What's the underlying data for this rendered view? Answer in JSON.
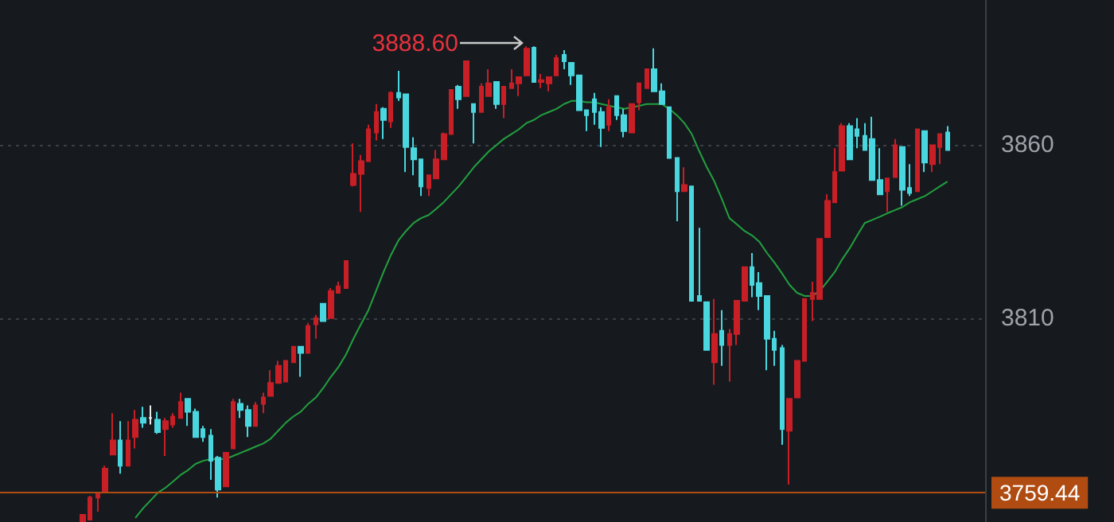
{
  "chart_data": {
    "type": "candlestick",
    "categories": [
      null,
      null,
      null,
      null,
      null,
      null,
      null,
      null,
      null,
      null,
      null,
      null,
      null,
      null,
      null,
      null,
      null,
      null,
      null,
      null,
      null,
      null,
      null,
      null,
      null,
      null,
      null,
      null,
      null,
      null,
      null,
      null,
      null,
      null,
      null,
      null,
      null,
      null,
      null,
      null,
      null,
      null,
      null,
      null,
      null,
      null,
      null,
      null,
      null,
      null,
      null,
      null,
      null,
      null,
      null,
      null,
      null,
      null,
      null,
      null,
      null,
      null,
      null,
      null,
      null,
      null,
      null,
      null,
      null,
      null,
      null,
      null,
      null,
      null,
      null,
      null,
      null,
      null,
      null,
      null,
      null,
      null,
      null,
      null,
      null,
      null,
      null,
      null,
      null,
      null,
      null,
      null,
      null,
      null,
      null,
      null,
      null,
      null,
      null,
      null,
      null,
      null,
      null,
      null,
      null,
      null,
      null,
      null,
      null,
      null,
      null,
      null,
      null,
      null,
      null,
      null
    ],
    "ohlc": [
      [
        3751.2,
        3753.1,
        3751.2,
        3753.1
      ],
      [
        3751.7,
        3758.6,
        3751.7,
        3758.1
      ],
      [
        3758.1,
        3759.5,
        3754.0,
        3759.5
      ],
      [
        3760.0,
        3767.3,
        3760.0,
        3766.4
      ],
      [
        3770.5,
        3782.5,
        3770.5,
        3774.6
      ],
      [
        3774.6,
        3780.2,
        3765.0,
        3767.3
      ],
      [
        3767.3,
        3780.2,
        3767.3,
        3774.6
      ],
      [
        3775.6,
        3783.4,
        3772.3,
        3780.6
      ],
      [
        3781.1,
        3784.3,
        3778.3,
        3779.7
      ],
      [
        3781.1,
        3784.7,
        3779.2,
        3781.1
      ],
      [
        3780.6,
        3782.9,
        3776.5,
        3777.0
      ],
      [
        3777.9,
        3781.1,
        3770.1,
        3780.2
      ],
      [
        3779.2,
        3782.5,
        3778.3,
        3781.5
      ],
      [
        3781.1,
        3788.4,
        3781.1,
        3785.7
      ],
      [
        3786.6,
        3786.6,
        3778.8,
        3782.9
      ],
      [
        3782.9,
        3783.8,
        3775.6,
        3775.6
      ],
      [
        3777.9,
        3778.8,
        3774.2,
        3775.6
      ],
      [
        3776.0,
        3777.9,
        3763.2,
        3768.7
      ],
      [
        3769.6,
        3770.1,
        3758.1,
        3760.4
      ],
      [
        3761.3,
        3771.0,
        3761.3,
        3771.0
      ],
      [
        3772.3,
        3786.6,
        3772.3,
        3785.7
      ],
      [
        3785.2,
        3786.6,
        3781.1,
        3783.4
      ],
      [
        3783.4,
        3784.7,
        3775.6,
        3778.8
      ],
      [
        3778.8,
        3785.7,
        3778.8,
        3784.7
      ],
      [
        3785.2,
        3788.4,
        3782.5,
        3787.0
      ],
      [
        3787.5,
        3794.9,
        3787.5,
        3791.2
      ],
      [
        3791.2,
        3797.6,
        3791.2,
        3796.2
      ],
      [
        3791.6,
        3797.6,
        3791.6,
        3797.6
      ],
      [
        3797.2,
        3801.7,
        3797.2,
        3801.7
      ],
      [
        3801.7,
        3801.7,
        3793.0,
        3799.9
      ],
      [
        3799.9,
        3808.6,
        3799.9,
        3807.7
      ],
      [
        3808.2,
        3810.9,
        3804.0,
        3810.0
      ],
      [
        3814.1,
        3814.1,
        3809.1,
        3809.1
      ],
      [
        3810.0,
        3818.7,
        3810.0,
        3817.8
      ],
      [
        3817.3,
        3820.5,
        3817.3,
        3819.2
      ],
      [
        3818.7,
        3826.5,
        3818.7,
        3826.5
      ],
      [
        3848.5,
        3860.5,
        3848.1,
        3851.7
      ],
      [
        3851.7,
        3857.2,
        3840.7,
        3855.4
      ],
      [
        3855.4,
        3865.9,
        3855.4,
        3864.6
      ],
      [
        3863.7,
        3871.9,
        3861.4,
        3869.6
      ],
      [
        3870.5,
        3871.0,
        3861.8,
        3867.3
      ],
      [
        3866.9,
        3875.6,
        3865.0,
        3875.1
      ],
      [
        3875.1,
        3881.5,
        3872.8,
        3873.8
      ],
      [
        3874.7,
        3874.7,
        3852.2,
        3859.5
      ],
      [
        3859.1,
        3862.3,
        3851.3,
        3855.9
      ],
      [
        3855.9,
        3855.9,
        3845.3,
        3848.1
      ],
      [
        3847.6,
        3851.3,
        3845.3,
        3851.3
      ],
      [
        3850.4,
        3858.6,
        3850.4,
        3855.9
      ],
      [
        3855.9,
        3863.7,
        3855.9,
        3863.2
      ],
      [
        3863.2,
        3876.0,
        3863.2,
        3876.0
      ],
      [
        3876.9,
        3877.4,
        3870.5,
        3873.3
      ],
      [
        3874.2,
        3884.3,
        3874.2,
        3884.3
      ],
      [
        3871.9,
        3871.9,
        3860.5,
        3869.6
      ],
      [
        3869.6,
        3877.9,
        3869.6,
        3876.9
      ],
      [
        3874.2,
        3882.0,
        3874.2,
        3877.9
      ],
      [
        3878.3,
        3878.3,
        3870.5,
        3871.9
      ],
      [
        3871.9,
        3876.9,
        3867.8,
        3876.9
      ],
      [
        3876.5,
        3882.0,
        3876.5,
        3877.9
      ],
      [
        3877.9,
        3879.7,
        3874.2,
        3879.7
      ],
      [
        3880.2,
        3888.6,
        3880.2,
        3887.9
      ],
      [
        3888.2,
        3888.6,
        3878.3,
        3878.3
      ],
      [
        3878.3,
        3880.6,
        3876.5,
        3878.8
      ],
      [
        3877.9,
        3879.7,
        3875.6,
        3879.7
      ],
      [
        3880.2,
        3886.1,
        3880.2,
        3885.2
      ],
      [
        3886.1,
        3887.5,
        3882.0,
        3884.3
      ],
      [
        3883.8,
        3883.8,
        3877.4,
        3880.2
      ],
      [
        3880.2,
        3880.2,
        3870.1,
        3870.1
      ],
      [
        3870.1,
        3870.1,
        3864.1,
        3868.7
      ],
      [
        3873.3,
        3875.1,
        3865.9,
        3869.6
      ],
      [
        3869.6,
        3871.0,
        3859.5,
        3865.0
      ],
      [
        3865.9,
        3873.3,
        3864.1,
        3871.0
      ],
      [
        3874.2,
        3874.2,
        3867.3,
        3868.7
      ],
      [
        3868.7,
        3870.5,
        3862.3,
        3864.1
      ],
      [
        3863.7,
        3871.9,
        3863.7,
        3871.9
      ],
      [
        3872.4,
        3877.9,
        3870.1,
        3877.9
      ],
      [
        3876.5,
        3882.0,
        3876.5,
        3882.0
      ],
      [
        3882.0,
        3888.0,
        3875.6,
        3875.6
      ],
      [
        3875.6,
        3877.9,
        3871.9,
        3871.9
      ],
      [
        3871.0,
        3871.0,
        3856.3,
        3856.3
      ],
      [
        3856.3,
        3856.3,
        3838.0,
        3846.7
      ],
      [
        3846.7,
        3853.6,
        3846.7,
        3848.5
      ],
      [
        3848.1,
        3848.1,
        3815.0,
        3815.0
      ],
      [
        3816.4,
        3836.1,
        3815.0,
        3815.0
      ],
      [
        3814.6,
        3814.6,
        3800.8,
        3800.8
      ],
      [
        3797.2,
        3815.5,
        3790.7,
        3805.4
      ],
      [
        3806.3,
        3812.3,
        3796.2,
        3802.2
      ],
      [
        3802.2,
        3806.8,
        3791.6,
        3805.4
      ],
      [
        3805.4,
        3815.0,
        3802.2,
        3815.0
      ],
      [
        3815.0,
        3824.7,
        3815.0,
        3824.7
      ],
      [
        3824.7,
        3828.8,
        3816.0,
        3819.6
      ],
      [
        3820.1,
        3823.3,
        3812.3,
        3816.4
      ],
      [
        3816.4,
        3816.4,
        3794.9,
        3804.0
      ],
      [
        3804.0,
        3806.3,
        3796.2,
        3800.8
      ],
      [
        3801.3,
        3802.2,
        3773.3,
        3777.9
      ],
      [
        3777.4,
        3786.6,
        3761.8,
        3786.6
      ],
      [
        3787.0,
        3797.6,
        3787.0,
        3797.6
      ],
      [
        3797.6,
        3815.5,
        3797.6,
        3815.5
      ],
      [
        3815.5,
        3820.5,
        3809.1,
        3817.3
      ],
      [
        3815.5,
        3832.9,
        3815.5,
        3832.9
      ],
      [
        3833.4,
        3845.8,
        3833.4,
        3843.9
      ],
      [
        3843.5,
        3859.1,
        3843.5,
        3852.2
      ],
      [
        3852.6,
        3866.4,
        3852.6,
        3865.5
      ],
      [
        3865.5,
        3866.4,
        3855.9,
        3855.9
      ],
      [
        3864.6,
        3867.8,
        3859.1,
        3862.7
      ],
      [
        3862.7,
        3866.4,
        3858.6,
        3858.6
      ],
      [
        3861.8,
        3868.2,
        3849.9,
        3849.9
      ],
      [
        3849.9,
        3859.1,
        3845.8,
        3845.8
      ],
      [
        3846.7,
        3850.4,
        3840.7,
        3850.4
      ],
      [
        3850.8,
        3861.8,
        3850.8,
        3860.0
      ],
      [
        3859.5,
        3859.5,
        3842.5,
        3847.1
      ],
      [
        3847.6,
        3854.5,
        3845.3,
        3846.2
      ],
      [
        3846.7,
        3864.6,
        3846.7,
        3864.6
      ],
      [
        3864.1,
        3864.1,
        3852.2,
        3855.0
      ],
      [
        3854.5,
        3860.0,
        3852.2,
        3860.0
      ],
      [
        3859.5,
        3863.2,
        3854.5,
        3863.2
      ],
      [
        3863.7,
        3865.5,
        3858.6,
        3858.6
      ]
    ],
    "colors": [
      "#c81e26",
      "#c81e26",
      "#c81e26",
      "#c81e26",
      "#c81e26",
      "#4ad6de",
      "#c81e26",
      "#c81e26",
      "#4ad6de",
      "#e8e8e8",
      "#4ad6de",
      "#c81e26",
      "#c81e26",
      "#c81e26",
      "#4ad6de",
      "#4ad6de",
      "#4ad6de",
      "#4ad6de",
      "#4ad6de",
      "#c81e26",
      "#c81e26",
      "#4ad6de",
      "#4ad6de",
      "#c81e26",
      "#c81e26",
      "#c81e26",
      "#c81e26",
      "#c81e26",
      "#c81e26",
      "#4ad6de",
      "#c81e26",
      "#c81e26",
      "#4ad6de",
      "#c81e26",
      "#c81e26",
      "#c81e26",
      "#c81e26",
      "#c81e26",
      "#c81e26",
      "#c81e26",
      "#4ad6de",
      "#c81e26",
      "#4ad6de",
      "#4ad6de",
      "#4ad6de",
      "#4ad6de",
      "#c81e26",
      "#c81e26",
      "#c81e26",
      "#c81e26",
      "#4ad6de",
      "#c81e26",
      "#4ad6de",
      "#c81e26",
      "#c81e26",
      "#4ad6de",
      "#c81e26",
      "#c81e26",
      "#c81e26",
      "#c81e26",
      "#4ad6de",
      "#c81e26",
      "#c81e26",
      "#c81e26",
      "#4ad6de",
      "#4ad6de",
      "#4ad6de",
      "#4ad6de",
      "#4ad6de",
      "#4ad6de",
      "#c81e26",
      "#4ad6de",
      "#4ad6de",
      "#c81e26",
      "#c81e26",
      "#c81e26",
      "#4ad6de",
      "#4ad6de",
      "#4ad6de",
      "#4ad6de",
      "#c81e26",
      "#4ad6de",
      "#4ad6de",
      "#4ad6de",
      "#c81e26",
      "#4ad6de",
      "#c81e26",
      "#c81e26",
      "#c81e26",
      "#4ad6de",
      "#4ad6de",
      "#4ad6de",
      "#4ad6de",
      "#4ad6de",
      "#c81e26",
      "#c81e26",
      "#c81e26",
      "#c81e26",
      "#c81e26",
      "#c81e26",
      "#c81e26",
      "#c81e26",
      "#4ad6de",
      "#4ad6de",
      "#4ad6de",
      "#4ad6de",
      "#4ad6de",
      "#c81e26",
      "#c81e26",
      "#4ad6de",
      "#4ad6de",
      "#c81e26",
      "#4ad6de",
      "#c81e26",
      "#c81e26",
      "#4ad6de"
    ],
    "series": [
      {
        "type": "line",
        "color": "#22a03e",
        "values": [
          null,
          null,
          null,
          null,
          null,
          null,
          null,
          3752.2,
          3754.9,
          3757.2,
          3759.5,
          3760.9,
          3762.7,
          3764.6,
          3766.0,
          3767.8,
          3768.7,
          3769.2,
          3769.2,
          3769.2,
          3770.1,
          3771.0,
          3771.9,
          3772.8,
          3773.7,
          3775.1,
          3777.4,
          3779.7,
          3781.5,
          3782.9,
          3785.2,
          3787.0,
          3789.8,
          3793.0,
          3795.8,
          3799.4,
          3804.0,
          3808.2,
          3812.3,
          3817.8,
          3823.3,
          3828.3,
          3832.5,
          3835.2,
          3837.5,
          3838.9,
          3839.8,
          3841.6,
          3843.5,
          3845.8,
          3848.1,
          3850.8,
          3853.6,
          3855.9,
          3858.2,
          3860.0,
          3861.8,
          3863.2,
          3864.6,
          3866.4,
          3867.3,
          3868.7,
          3869.6,
          3870.5,
          3871.9,
          3872.8,
          3872.8,
          3872.4,
          3872.4,
          3871.9,
          3871.4,
          3871.0,
          3870.5,
          3871.0,
          3871.4,
          3871.9,
          3871.9,
          3871.9,
          3870.5,
          3868.7,
          3866.4,
          3863.2,
          3858.2,
          3853.6,
          3849.5,
          3844.4,
          3838.9,
          3837.1,
          3835.2,
          3833.9,
          3832.0,
          3828.8,
          3826.0,
          3822.9,
          3819.6,
          3817.3,
          3816.4,
          3816.4,
          3817.8,
          3820.5,
          3823.3,
          3827.0,
          3830.2,
          3833.9,
          3837.5,
          3838.4,
          3839.3,
          3840.3,
          3841.2,
          3842.1,
          3843.5,
          3844.4,
          3845.3,
          3846.7,
          3848.1,
          3849.5
        ]
      }
    ],
    "ylim": [
      3751,
      3902
    ],
    "yticks": [
      3810,
      3860
    ],
    "grid": "y",
    "line_style": "solid",
    "ref_lines": [
      {
        "axis": "y",
        "value": 3759.44,
        "label": "3759.44",
        "color": "#b04c12"
      }
    ],
    "annotations": [
      "3888.60"
    ]
  }
}
